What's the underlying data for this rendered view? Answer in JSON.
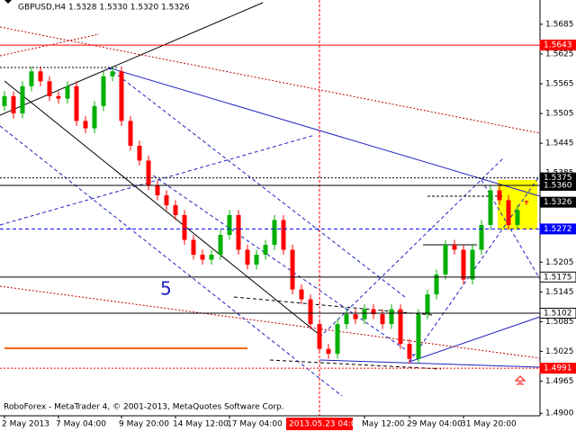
{
  "chart_data": {
    "type": "candlestick",
    "title": "GBPUSD,H4  1.5328 1.5330 1.5320 1.5326",
    "footer": "RoboForex - MetaTrader 4, © 2001-2013, MetaQuotes Software Corp.",
    "annotation": "5",
    "cursor_label": "2013.05.23 04:00",
    "categories": [
      "2 May 2013",
      null,
      null,
      null,
      null,
      null,
      "7 May 04:00",
      null,
      null,
      null,
      null,
      null,
      null,
      "9 May 20:00",
      null,
      null,
      null,
      null,
      null,
      "14 May 12:00",
      null,
      null,
      null,
      null,
      null,
      "17 May 04:00",
      null,
      null,
      null,
      null,
      null,
      null,
      null,
      null,
      null,
      null,
      null,
      null,
      null,
      null,
      "May 12:00",
      null,
      null,
      null,
      null,
      "29 May 04:00",
      null,
      null,
      null,
      null,
      null,
      "31 May 20:00",
      null,
      null,
      null,
      null,
      null,
      null,
      null
    ],
    "open": [
      1.552,
      1.554,
      1.5505,
      1.556,
      1.559,
      1.557,
      1.554,
      1.5535,
      1.556,
      1.549,
      1.5475,
      1.552,
      1.558,
      1.559,
      1.549,
      1.544,
      1.541,
      1.536,
      1.534,
      1.532,
      1.53,
      1.525,
      1.522,
      1.521,
      1.522,
      1.526,
      1.53,
      1.523,
      1.52,
      1.522,
      1.524,
      1.529,
      1.523,
      1.515,
      1.513,
      1.508,
      1.503,
      1.502,
      1.508,
      1.51,
      1.509,
      1.511,
      1.51,
      1.508,
      1.511,
      1.504,
      1.501,
      1.51,
      1.514,
      1.518,
      1.524,
      1.523,
      1.517,
      1.523,
      1.528,
      1.535,
      1.533,
      1.528,
      1.5328
    ],
    "high": [
      1.555,
      1.555,
      1.557,
      1.56,
      1.56,
      1.558,
      1.555,
      1.557,
      1.557,
      1.55,
      1.553,
      1.559,
      1.56,
      1.56,
      1.55,
      1.545,
      1.542,
      1.537,
      1.535,
      1.533,
      1.531,
      1.526,
      1.523,
      1.523,
      1.527,
      1.531,
      1.531,
      1.524,
      1.523,
      1.525,
      1.53,
      1.53,
      1.524,
      1.516,
      1.514,
      1.509,
      1.504,
      1.509,
      1.511,
      1.511,
      1.512,
      1.512,
      1.511,
      1.512,
      1.512,
      1.505,
      1.511,
      1.515,
      1.519,
      1.525,
      1.525,
      1.524,
      1.524,
      1.529,
      1.536,
      1.536,
      1.534,
      1.532,
      1.533
    ],
    "low": [
      1.551,
      1.5495,
      1.5495,
      1.555,
      1.556,
      1.553,
      1.5525,
      1.5525,
      1.548,
      1.5465,
      1.5465,
      1.551,
      1.557,
      1.548,
      1.543,
      1.54,
      1.535,
      1.533,
      1.531,
      1.529,
      1.524,
      1.521,
      1.52,
      1.52,
      1.521,
      1.525,
      1.522,
      1.519,
      1.519,
      1.521,
      1.523,
      1.522,
      1.514,
      1.512,
      1.507,
      1.502,
      1.501,
      1.501,
      1.507,
      1.508,
      1.508,
      1.509,
      1.507,
      1.507,
      1.503,
      1.5,
      1.5,
      1.509,
      1.513,
      1.517,
      1.522,
      1.516,
      1.516,
      1.522,
      1.527,
      1.532,
      1.527,
      1.527,
      1.532
    ],
    "close": [
      1.554,
      1.5505,
      1.556,
      1.559,
      1.557,
      1.554,
      1.5535,
      1.556,
      1.549,
      1.5475,
      1.552,
      1.558,
      1.559,
      1.549,
      1.544,
      1.541,
      1.536,
      1.534,
      1.532,
      1.53,
      1.525,
      1.522,
      1.521,
      1.522,
      1.526,
      1.53,
      1.523,
      1.52,
      1.522,
      1.524,
      1.529,
      1.523,
      1.515,
      1.513,
      1.508,
      1.503,
      1.502,
      1.508,
      1.51,
      1.509,
      1.511,
      1.51,
      1.508,
      1.511,
      1.504,
      1.501,
      1.51,
      1.514,
      1.518,
      1.524,
      1.523,
      1.517,
      1.523,
      1.528,
      1.535,
      1.533,
      1.528,
      1.531,
      1.5326
    ],
    "up_color": "#00b000",
    "down_color": "#ff0000",
    "ylim": [
      1.4895,
      1.5734
    ],
    "yticks": [
      1.5685,
      1.5625,
      1.5565,
      1.5505,
      1.5445,
      1.5385,
      1.5205,
      1.5145,
      1.5085,
      1.5025,
      1.4965,
      {
        "value": 1.49,
        "label": "1.4900"
      }
    ],
    "grid": false,
    "levels": [
      {
        "value": 1.5643,
        "color": "#ff0000",
        "line": "solid",
        "filled": true
      },
      {
        "value": 1.5375,
        "color": "#000000",
        "line": "dotted",
        "filled": true
      },
      {
        "value": 1.536,
        "label": "1.5360",
        "color": "#000000",
        "line": "solid",
        "filled": true
      },
      {
        "value": 1.5326,
        "color": "#000000",
        "line": "none",
        "filled": true
      },
      {
        "value": 1.5272,
        "color": "#0000ff",
        "line": "dashed",
        "filled": true
      },
      {
        "value": 1.5175,
        "color": "#000000",
        "line": "solid",
        "filled": false
      },
      {
        "value": 1.5102,
        "color": "#000000",
        "line": "solid",
        "filled": false
      },
      {
        "value": 1.4991,
        "color": "#ff0000",
        "line": "dotted",
        "filled": true
      }
    ]
  }
}
